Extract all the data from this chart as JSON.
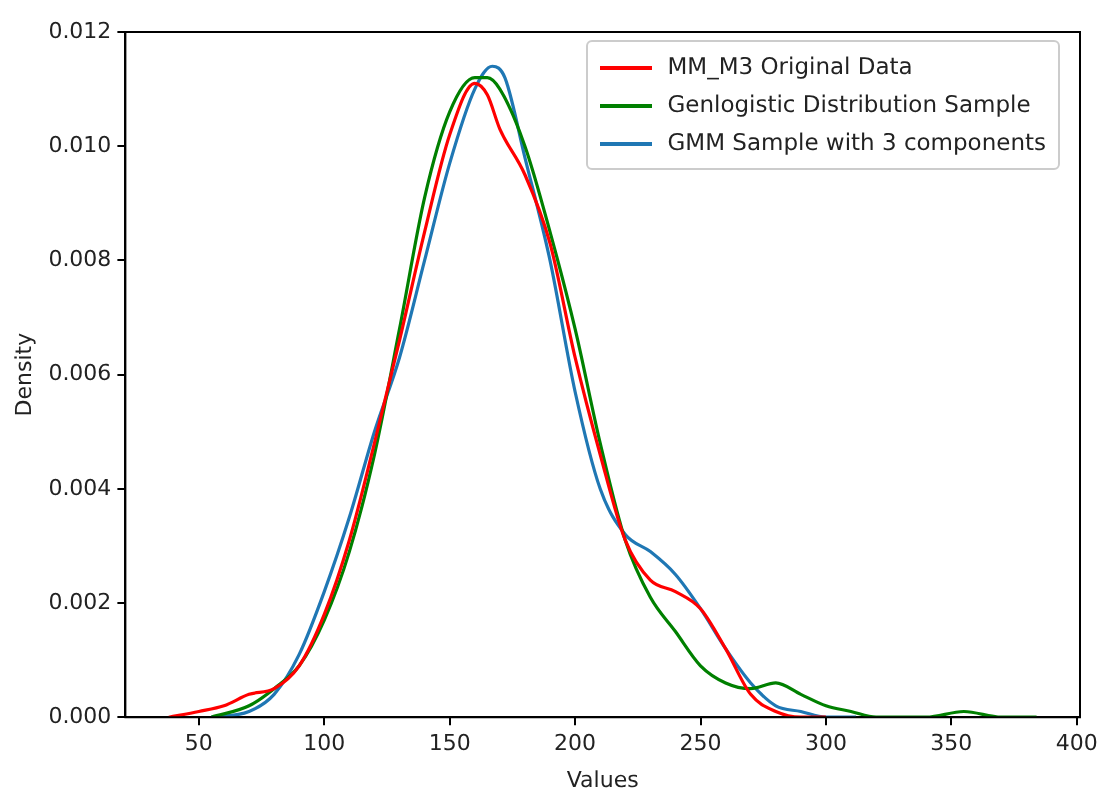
{
  "chart_data": {
    "type": "line",
    "xlabel": "Values",
    "ylabel": "Density",
    "xlim": [
      20.7,
      401.3
    ],
    "xticks": [
      50,
      100,
      150,
      200,
      250,
      300,
      350,
      400
    ],
    "ylim": [
      0,
      0.012
    ],
    "yticks": [
      {
        "value": 0,
        "label": "0.000"
      },
      {
        "value": 0.002,
        "label": "0.002"
      },
      {
        "value": 0.004,
        "label": "0.004"
      },
      {
        "value": 0.006,
        "label": "0.006"
      },
      {
        "value": 0.008,
        "label": "0.008"
      },
      {
        "value": 0.01,
        "label": "0.010"
      },
      {
        "value": 0.012,
        "label": "0.012"
      }
    ],
    "grid": false,
    "legend": "top right",
    "marker": "none",
    "line_style": "solid",
    "series": [
      {
        "name": "MM_M3 Original Data",
        "color": "#ff0000",
        "x": [
          38,
          50,
          60,
          70,
          80,
          90,
          100,
          110,
          120,
          130,
          140,
          150,
          160,
          165,
          170,
          180,
          190,
          200,
          210,
          220,
          230,
          240,
          250,
          260,
          270,
          280,
          290,
          300
        ],
        "values": [
          0,
          0.0001,
          0.0002,
          0.0004,
          0.0005,
          0.0009,
          0.0018,
          0.0031,
          0.0048,
          0.0066,
          0.0085,
          0.0102,
          0.0111,
          0.0109,
          0.0103,
          0.0095,
          0.0083,
          0.0063,
          0.0046,
          0.0031,
          0.0024,
          0.0022,
          0.0019,
          0.0012,
          0.0004,
          0.0001,
          0,
          0
        ]
      },
      {
        "name": "Genlogistic Distribution Sample",
        "color": "#008000",
        "x": [
          55,
          70,
          80,
          90,
          100,
          110,
          120,
          130,
          140,
          150,
          160,
          165,
          170,
          180,
          190,
          200,
          210,
          220,
          230,
          240,
          250,
          260,
          270,
          280,
          290,
          300,
          310,
          320,
          340,
          355,
          370,
          384
        ],
        "values": [
          0,
          0.0002,
          0.0005,
          0.0009,
          0.0017,
          0.0029,
          0.0046,
          0.0068,
          0.0091,
          0.0106,
          0.0112,
          0.0112,
          0.011,
          0.01,
          0.0085,
          0.0068,
          0.0048,
          0.0031,
          0.0021,
          0.0015,
          0.0009,
          0.0006,
          0.0005,
          0.0006,
          0.0004,
          0.0002,
          0.0001,
          0,
          0,
          0.0001,
          0,
          0
        ]
      },
      {
        "name": "GMM Sample with 3 components",
        "color": "#1f77b4",
        "x": [
          55,
          70,
          80,
          90,
          100,
          110,
          120,
          130,
          140,
          150,
          160,
          167,
          172,
          180,
          190,
          200,
          210,
          220,
          230,
          240,
          250,
          260,
          270,
          280,
          290,
          300,
          312
        ],
        "values": [
          0,
          0.0001,
          0.0004,
          0.0011,
          0.0022,
          0.0035,
          0.005,
          0.0063,
          0.008,
          0.0097,
          0.011,
          0.0114,
          0.0112,
          0.0098,
          0.008,
          0.0057,
          0.004,
          0.0032,
          0.0029,
          0.0025,
          0.0019,
          0.0012,
          0.0006,
          0.0002,
          0.0001,
          0,
          0
        ]
      }
    ]
  }
}
